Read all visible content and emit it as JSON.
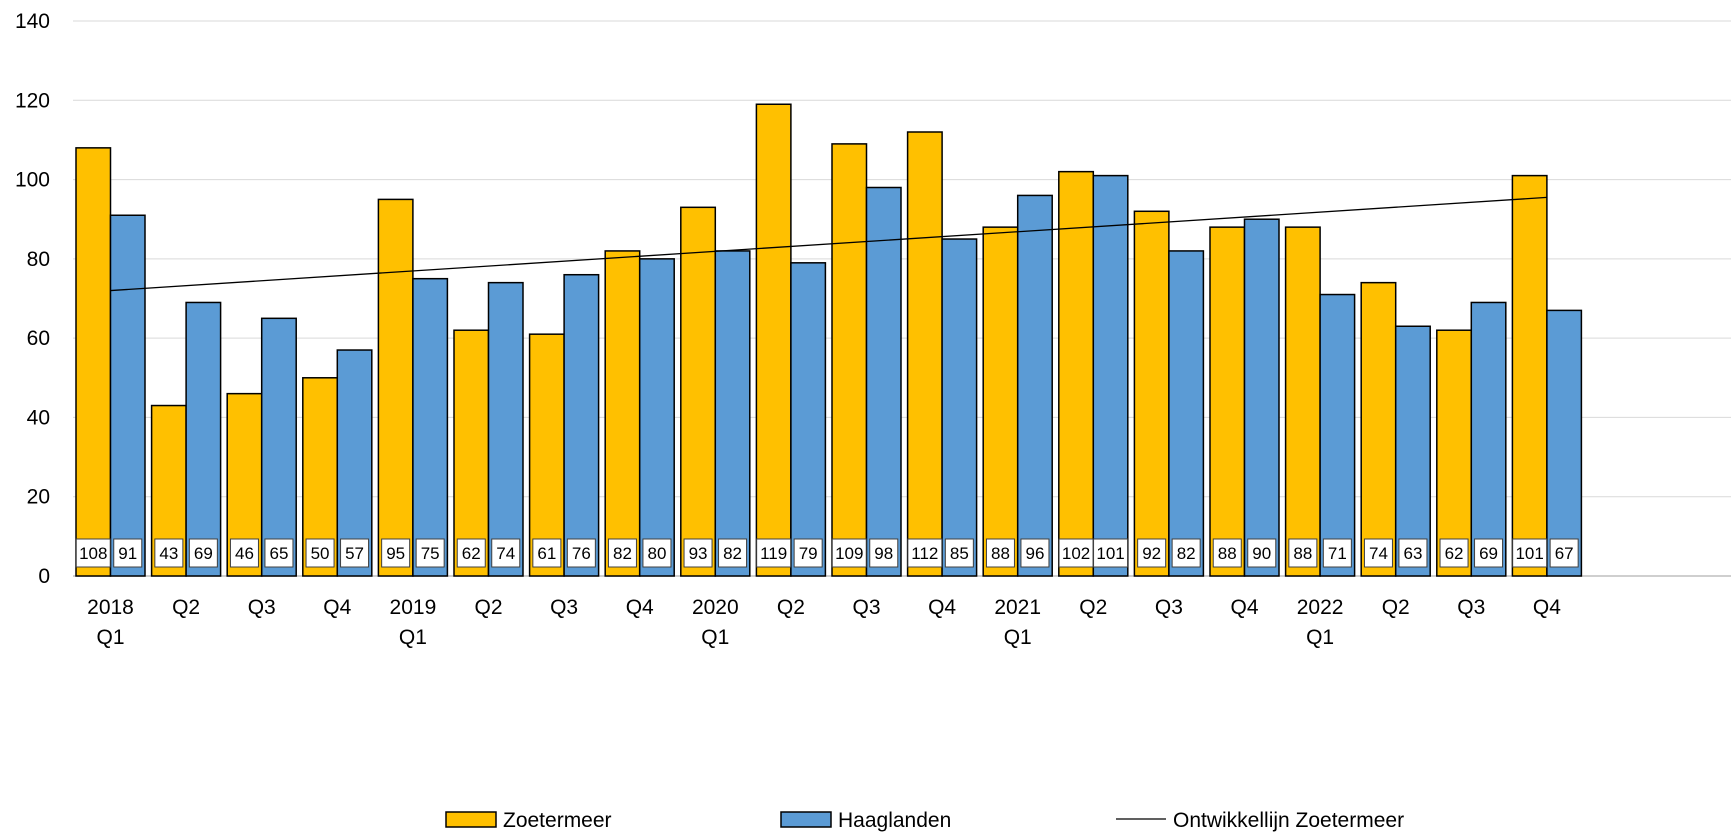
{
  "chart_data": {
    "type": "bar",
    "title": "",
    "xlabel": "",
    "ylabel": "",
    "ylim": [
      0,
      140
    ],
    "yticks": [
      0,
      20,
      40,
      60,
      80,
      100,
      120,
      140
    ],
    "grid": true,
    "legend_position": "bottom",
    "categories": [
      {
        "line1": "2018",
        "line2": "Q1"
      },
      {
        "line1": "Q2",
        "line2": ""
      },
      {
        "line1": "Q3",
        "line2": ""
      },
      {
        "line1": "Q4",
        "line2": ""
      },
      {
        "line1": "2019",
        "line2": "Q1"
      },
      {
        "line1": "Q2",
        "line2": ""
      },
      {
        "line1": "Q3",
        "line2": ""
      },
      {
        "line1": "Q4",
        "line2": ""
      },
      {
        "line1": "2020",
        "line2": "Q1"
      },
      {
        "line1": "Q2",
        "line2": ""
      },
      {
        "line1": "Q3",
        "line2": ""
      },
      {
        "line1": "Q4",
        "line2": ""
      },
      {
        "line1": "2021",
        "line2": "Q1"
      },
      {
        "line1": "Q2",
        "line2": ""
      },
      {
        "line1": "Q3",
        "line2": ""
      },
      {
        "line1": "Q4",
        "line2": ""
      },
      {
        "line1": "2022",
        "line2": "Q1"
      },
      {
        "line1": "Q2",
        "line2": ""
      },
      {
        "line1": "Q3",
        "line2": ""
      },
      {
        "line1": "Q4",
        "line2": ""
      }
    ],
    "series": [
      {
        "name": "Zoetermeer",
        "color": "#FFC000",
        "values": [
          108,
          43,
          46,
          50,
          95,
          62,
          61,
          82,
          93,
          119,
          109,
          112,
          88,
          102,
          92,
          88,
          88,
          74,
          62,
          101
        ]
      },
      {
        "name": "Haaglanden",
        "color": "#5B9BD5",
        "values": [
          91,
          69,
          65,
          57,
          75,
          74,
          76,
          80,
          82,
          79,
          98,
          85,
          96,
          101,
          82,
          90,
          71,
          63,
          69,
          67
        ]
      }
    ],
    "trendline": {
      "name": "Ontwikkellijn Zoetermeer",
      "color": "#000000",
      "start": 72,
      "end": 95.5
    }
  }
}
